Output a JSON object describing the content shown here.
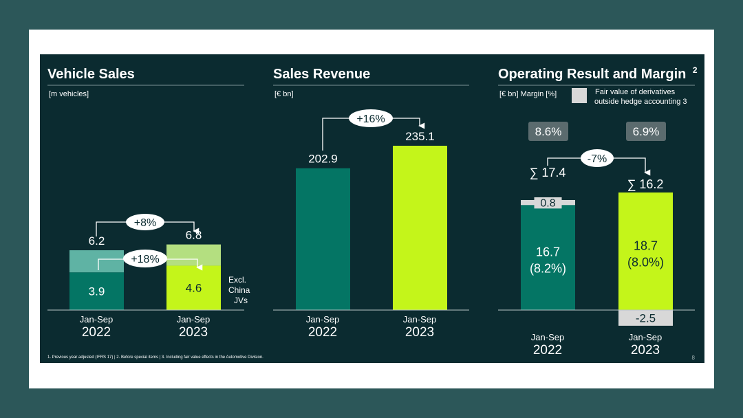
{
  "colors": {
    "background": "#2c5759",
    "slide": "#0b2b30",
    "teal": "#047564",
    "teal_light": "#5fb3a4",
    "lime": "#c4f51a",
    "lime_light": "#b4df80",
    "grey_box": "#d8d8d8",
    "badge": "#5b6b6e",
    "text": "#ffffff"
  },
  "footnote": "1. Previous year adjusted (IFRS 17) | 2. Before special items | 3. Including fair value effects in the Automotive Division.",
  "page_number": "8",
  "chart_data": [
    {
      "type": "bar",
      "title": "Vehicle Sales",
      "unit": "[m vehicles]",
      "categories": [
        "Jan-Sep 2022",
        "Jan-Sep 2023"
      ],
      "category_lines": [
        [
          "Jan-Sep",
          "2022"
        ],
        [
          "Jan-Sep",
          "2023"
        ]
      ],
      "series": [
        {
          "name": "Excl. China JVs",
          "values": [
            3.9,
            4.6
          ]
        },
        {
          "name": "Total",
          "values": [
            6.2,
            6.8
          ]
        }
      ],
      "side_label": [
        "Excl.",
        "China",
        "JVs"
      ],
      "growth_total": "+8%",
      "growth_excl": "+18%",
      "ylim": [
        0,
        7.5
      ]
    },
    {
      "type": "bar",
      "title": "Sales Revenue",
      "unit": "[€ bn]",
      "categories": [
        "Jan-Sep 2022",
        "Jan-Sep 2023"
      ],
      "category_lines": [
        [
          "Jan-Sep",
          "2022"
        ],
        [
          "Jan-Sep",
          "2023"
        ]
      ],
      "values": [
        202.9,
        235.1
      ],
      "value_labels": [
        "202.9",
        "235.1"
      ],
      "growth": "+16%",
      "ylim": [
        0,
        250
      ]
    },
    {
      "type": "bar",
      "title": "Operating Result and Margin",
      "title_sup": "2",
      "unit": "[€ bn] Margin [%]",
      "legend": [
        "Fair value of derivatives",
        "outside hedge accounting 3"
      ],
      "categories": [
        "Jan-Sep 2022",
        "Jan-Sep 2023"
      ],
      "category_lines": [
        [
          "Jan-Sep",
          "2022"
        ],
        [
          "Jan-Sep",
          "2023"
        ]
      ],
      "series": [
        {
          "name": "Operating result before fair value",
          "values": [
            16.7,
            18.7
          ],
          "labels": [
            "16.7",
            "18.7"
          ],
          "margins": [
            "(8.2%)",
            "(8.0%)"
          ]
        },
        {
          "name": "Fair value of derivatives outside hedge accounting",
          "values": [
            0.8,
            -2.5
          ],
          "labels": [
            "0.8",
            "-2.5"
          ]
        }
      ],
      "totals": [
        "∑ 17.4",
        "∑ 16.2"
      ],
      "margins_total": [
        "8.6%",
        "6.9%"
      ],
      "growth": "-7%",
      "ylim": [
        -3,
        20
      ]
    }
  ]
}
